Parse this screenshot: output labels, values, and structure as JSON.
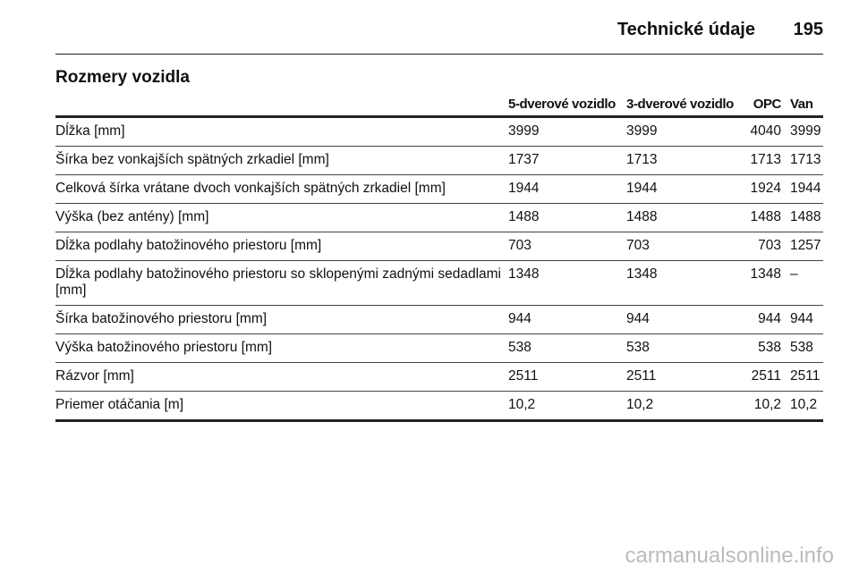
{
  "header": {
    "title": "Technické údaje",
    "page_number": "195"
  },
  "section": {
    "title": "Rozmery vozidla"
  },
  "table": {
    "columns": [
      "",
      "5-dverové vozidlo",
      "3-dverové vozidlo",
      "OPC",
      "Van"
    ],
    "rows": [
      [
        "Dĺžka [mm]",
        "3999",
        "3999",
        "4040",
        "3999"
      ],
      [
        "Šírka bez vonkajších spätných zrkadiel [mm]",
        "1737",
        "1713",
        "1713",
        "1713"
      ],
      [
        "Celková šírka vrátane dvoch vonkajších spätných zrkadiel [mm]",
        "1944",
        "1944",
        "1924",
        "1944"
      ],
      [
        "Výška (bez antény) [mm]",
        "1488",
        "1488",
        "1488",
        "1488"
      ],
      [
        "Dĺžka podlahy batožinového priestoru [mm]",
        "703",
        "703",
        "703",
        "1257"
      ],
      [
        "Dĺžka podlahy batožinového priestoru so sklopenými zadnými sedadlami [mm]",
        "1348",
        "1348",
        "1348",
        "–"
      ],
      [
        "Šírka batožinového priestoru [mm]",
        "944",
        "944",
        "944",
        "944"
      ],
      [
        "Výška batožinového priestoru [mm]",
        "538",
        "538",
        "538",
        "538"
      ],
      [
        "Rázvor [mm]",
        "2511",
        "2511",
        "2511",
        "2511"
      ],
      [
        "Priemer otáčania [m]",
        "10,2",
        "10,2",
        "10,2",
        "10,2"
      ]
    ]
  },
  "watermark": "carmanualsonline.info"
}
